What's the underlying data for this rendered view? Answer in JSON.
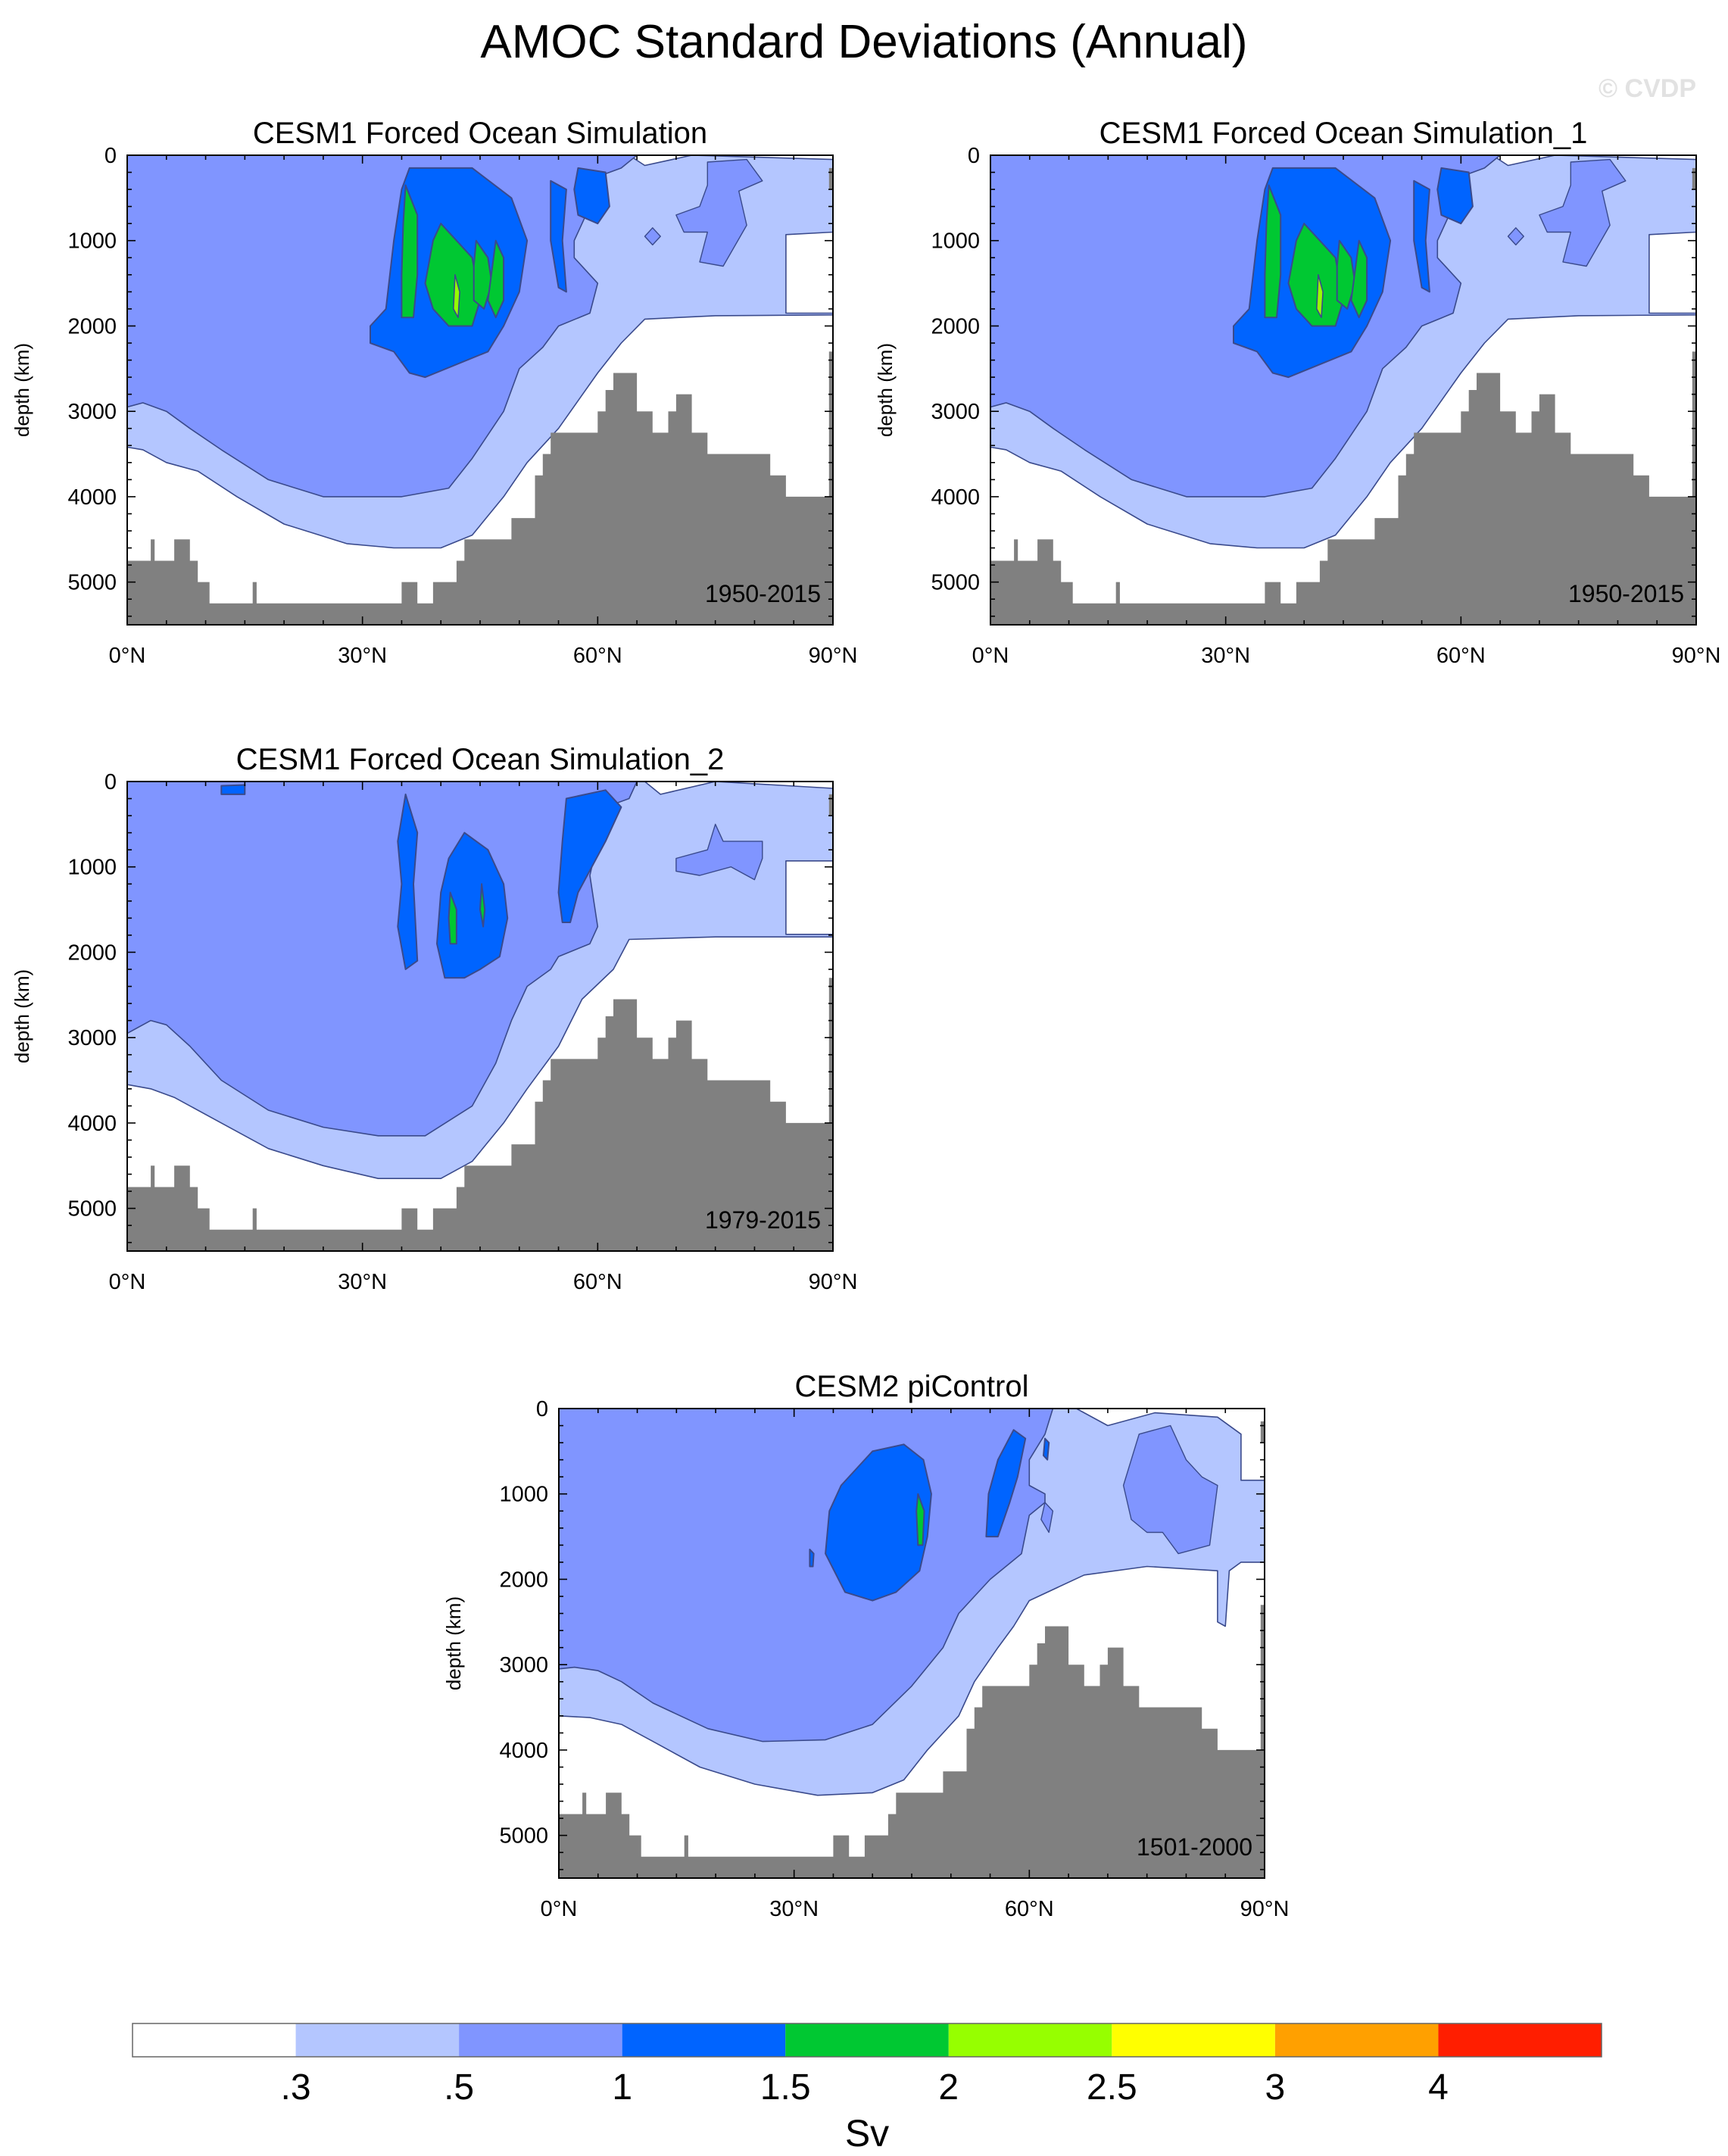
{
  "figure": {
    "title": "AMOC Standard Deviations (Annual)",
    "watermark": "© CVDP"
  },
  "colors": {
    "levels": [
      "#ffffff",
      "#b4c6ff",
      "#8095ff",
      "#0064ff",
      "#00c832",
      "#96ff00",
      "#ffff00",
      "#ffa000",
      "#ff1e00"
    ],
    "land": "#808080",
    "contour_line": "#3a4a8c"
  },
  "chart_data": [
    {
      "type": "heatmap",
      "title": "CESM1 Forced Ocean Simulation",
      "period": "1950-2015",
      "ylabel": "depth (km)",
      "xlim": [
        0,
        90
      ],
      "ylim": [
        0,
        5500
      ],
      "x_ticks": [
        "0°N",
        "30°N",
        "60°N",
        "90°N"
      ],
      "y_ticks": [
        "0",
        "1000",
        "2000",
        "3000",
        "4000",
        "5000"
      ],
      "variant": "A"
    },
    {
      "type": "heatmap",
      "title": "CESM1 Forced Ocean Simulation_1",
      "period": "1950-2015",
      "ylabel": "depth (km)",
      "xlim": [
        0,
        90
      ],
      "ylim": [
        0,
        5500
      ],
      "x_ticks": [
        "0°N",
        "30°N",
        "60°N",
        "90°N"
      ],
      "y_ticks": [
        "0",
        "1000",
        "2000",
        "3000",
        "4000",
        "5000"
      ],
      "variant": "A"
    },
    {
      "type": "heatmap",
      "title": "CESM1 Forced Ocean Simulation_2",
      "period": "1979-2015",
      "ylabel": "depth (km)",
      "xlim": [
        0,
        90
      ],
      "ylim": [
        0,
        5500
      ],
      "x_ticks": [
        "0°N",
        "30°N",
        "60°N",
        "90°N"
      ],
      "y_ticks": [
        "0",
        "1000",
        "2000",
        "3000",
        "4000",
        "5000"
      ],
      "variant": "B"
    },
    {
      "type": "heatmap",
      "title": "CESM2 piControl",
      "period": "1501-2000",
      "ylabel": "depth (km)",
      "xlim": [
        0,
        90
      ],
      "ylim": [
        0,
        5500
      ],
      "x_ticks": [
        "0°N",
        "30°N",
        "60°N",
        "90°N"
      ],
      "y_ticks": [
        "0",
        "1000",
        "2000",
        "3000",
        "4000",
        "5000"
      ],
      "variant": "C"
    }
  ],
  "colorbar": {
    "labels": [
      ".3",
      ".5",
      "1",
      "1.5",
      "2",
      "2.5",
      "3",
      "4"
    ],
    "units": "Sv"
  }
}
